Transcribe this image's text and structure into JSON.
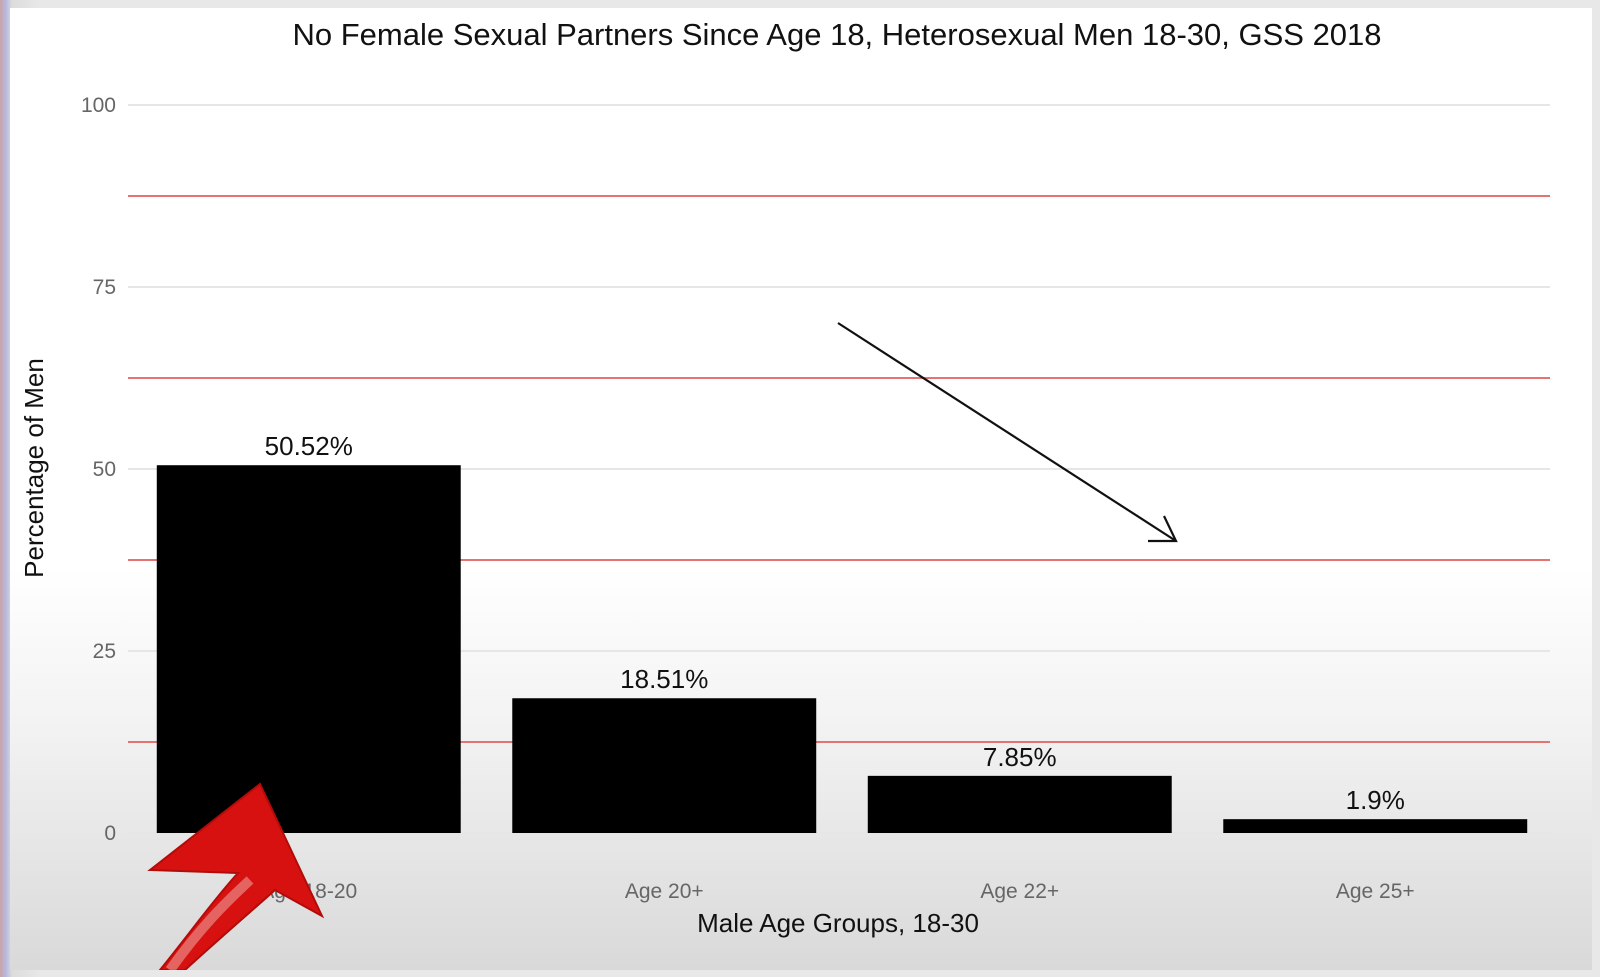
{
  "chart_data": {
    "type": "bar",
    "title": "No Female Sexual Partners Since Age 18, Heterosexual Men 18-30, GSS 2018",
    "xlabel": "Male Age Groups, 18-30",
    "ylabel": "Percentage of Men",
    "categories": [
      "Age 18-20",
      "Age 20+",
      "Age 22+",
      "Age 25+"
    ],
    "values": [
      50.52,
      18.51,
      7.85,
      1.9
    ],
    "value_labels": [
      "50.52%",
      "18.51%",
      "7.85%",
      "1.9%"
    ],
    "ylim": [
      0,
      100
    ],
    "yticks": [
      0,
      25,
      50,
      75,
      100
    ],
    "grid": true,
    "legend": "none",
    "bar_color": "#000000",
    "annotation_line_color": "#e57373",
    "annotation_lines_y": [
      12.5,
      37.5,
      62.5,
      87.5
    ],
    "annotation_arrow_color": "#d6110f"
  }
}
